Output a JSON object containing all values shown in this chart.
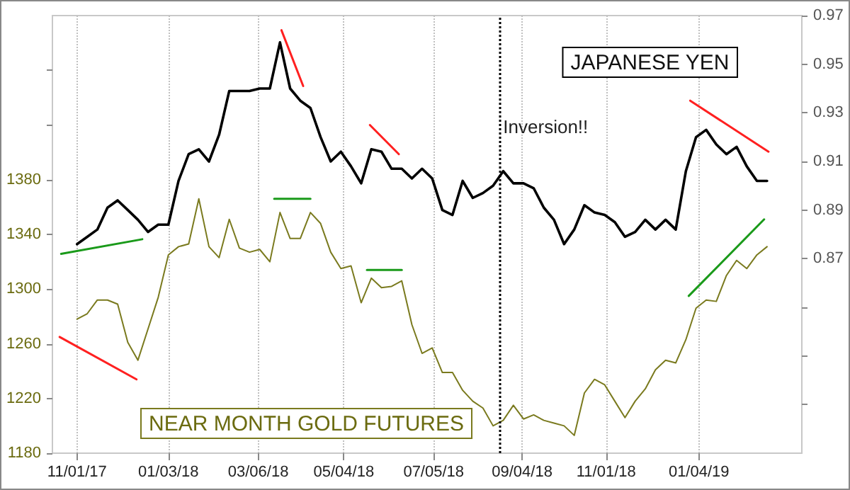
{
  "chart_data": {
    "type": "line",
    "marker": "none",
    "grid": "x",
    "x": [
      "2017-11-01",
      "2017-11-08",
      "2017-11-15",
      "2017-11-22",
      "2017-11-29",
      "2017-12-06",
      "2017-12-13",
      "2017-12-20",
      "2017-12-27",
      "2018-01-03",
      "2018-01-10",
      "2018-01-17",
      "2018-01-24",
      "2018-01-31",
      "2018-02-07",
      "2018-02-14",
      "2018-02-21",
      "2018-02-28",
      "2018-03-07",
      "2018-03-14",
      "2018-03-21",
      "2018-03-28",
      "2018-04-04",
      "2018-04-11",
      "2018-04-18",
      "2018-04-25",
      "2018-05-02",
      "2018-05-09",
      "2018-05-16",
      "2018-05-23",
      "2018-05-30",
      "2018-06-06",
      "2018-06-13",
      "2018-06-20",
      "2018-06-27",
      "2018-07-04",
      "2018-07-11",
      "2018-07-18",
      "2018-07-25",
      "2018-08-01",
      "2018-08-08",
      "2018-08-15",
      "2018-08-22",
      "2018-08-29",
      "2018-09-05",
      "2018-09-12",
      "2018-09-19",
      "2018-09-26",
      "2018-10-03",
      "2018-10-10",
      "2018-10-17",
      "2018-10-24",
      "2018-10-31",
      "2018-11-07",
      "2018-11-14",
      "2018-11-21",
      "2018-11-28",
      "2018-12-05",
      "2018-12-12",
      "2018-12-19",
      "2018-12-26",
      "2019-01-02",
      "2019-01-09",
      "2019-01-16",
      "2019-01-23",
      "2019-01-30",
      "2019-02-06",
      "2019-02-13",
      "2019-02-20"
    ],
    "series": [
      {
        "name": "JAPANESE YEN",
        "color": "#000000",
        "axis": "y2",
        "values": [
          0.876,
          0.879,
          0.882,
          0.891,
          0.894,
          0.89,
          0.886,
          0.881,
          0.884,
          0.884,
          0.902,
          0.913,
          0.915,
          0.91,
          0.921,
          0.939,
          0.939,
          0.939,
          0.94,
          0.94,
          0.959,
          0.94,
          0.935,
          0.932,
          0.92,
          0.91,
          0.914,
          0.908,
          0.901,
          0.915,
          0.914,
          0.907,
          0.907,
          0.903,
          0.907,
          0.903,
          0.89,
          0.888,
          0.902,
          0.895,
          0.897,
          0.9,
          0.906,
          0.901,
          0.901,
          0.899,
          0.891,
          0.886,
          0.876,
          0.882,
          0.892,
          0.889,
          0.888,
          0.885,
          0.879,
          0.881,
          0.886,
          0.882,
          0.886,
          0.882,
          0.906,
          0.92,
          0.923,
          0.917,
          0.913,
          0.916,
          0.908,
          0.902,
          0.902
        ]
      },
      {
        "name": "NEAR MONTH GOLD FUTURES",
        "color": "#7a7a1e",
        "values": [
          1278,
          1282,
          1292,
          1292,
          1289,
          1261,
          1248,
          1271,
          1294,
          1325,
          1331,
          1333,
          1366,
          1331,
          1323,
          1351,
          1330,
          1327,
          1329,
          1320,
          1356,
          1337,
          1337,
          1356,
          1348,
          1327,
          1315,
          1317,
          1290,
          1308,
          1301,
          1302,
          1306,
          1274,
          1253,
          1257,
          1239,
          1239,
          1226,
          1218,
          1213,
          1200,
          1204,
          1215,
          1205,
          1208,
          1204,
          1202,
          1200,
          1193,
          1224,
          1234,
          1230,
          1218,
          1206,
          1218,
          1227,
          1241,
          1248,
          1246,
          1263,
          1286,
          1292,
          1291,
          1310,
          1321,
          1315,
          1325,
          1331
        ]
      },
      {
        "color": "#1a9a1a",
        "axis": "y2",
        "x": [
          "2017-10-21",
          "2017-12-16"
        ],
        "values": [
          0.872,
          0.878
        ]
      },
      {
        "color": "#ff2020",
        "x": [
          "2017-10-20",
          "2017-12-12"
        ],
        "values": [
          1265,
          1234
        ]
      },
      {
        "color": "#ff2020",
        "axis": "y2",
        "x": [
          "2018-03-22",
          "2018-04-06"
        ],
        "values": [
          0.964,
          0.941
        ]
      },
      {
        "color": "#1a9a1a",
        "x": [
          "2018-03-17",
          "2018-04-11"
        ],
        "values": [
          1366,
          1366
        ]
      },
      {
        "color": "#ff2020",
        "axis": "y2",
        "x": [
          "2018-05-22",
          "2018-06-11"
        ],
        "values": [
          0.925,
          0.913
        ]
      },
      {
        "color": "#1a9a1a",
        "x": [
          "2018-05-20",
          "2018-06-13"
        ],
        "values": [
          1314,
          1314
        ]
      },
      {
        "color": "#ff2020",
        "axis": "y2",
        "x": [
          "2018-12-29",
          "2019-02-21"
        ],
        "values": [
          0.935,
          0.914
        ]
      },
      {
        "color": "#1a9a1a",
        "x": [
          "2018-12-28",
          "2019-02-18"
        ],
        "values": [
          1295,
          1351
        ]
      }
    ],
    "xlim": [
      "2017-10-15",
      "2019-03-16"
    ],
    "xticks": [
      {
        "value": "2017-11-01",
        "label": "11/01/17"
      },
      {
        "value": "2018-01-03",
        "label": "01/03/18"
      },
      {
        "value": "2018-03-06",
        "label": "03/06/18"
      },
      {
        "value": "2018-05-04",
        "label": "05/04/18"
      },
      {
        "value": "2018-07-05",
        "label": "07/05/18"
      },
      {
        "value": "2018-09-04",
        "label": "09/04/18"
      },
      {
        "value": "2018-11-01",
        "label": "11/01/18"
      },
      {
        "value": "2019-01-04",
        "label": "01/04/19"
      }
    ],
    "ylim": [
      1180,
      1500
    ],
    "yticks": [
      1180,
      1220,
      1260,
      1300,
      1340,
      1380,
      {
        "value": 1420,
        "label": null
      },
      {
        "value": 1460,
        "label": null
      }
    ],
    "y2lim": [
      0.79,
      0.97
    ],
    "y2ticks": [
      {
        "value": 0.81,
        "label": null
      },
      {
        "value": 0.83,
        "label": null
      },
      {
        "value": 0.85,
        "label": null
      },
      0.87,
      0.89,
      0.91,
      0.93,
      0.95,
      0.97
    ],
    "ref_lines": [
      {
        "axis": "x",
        "value": "2018-08-20",
        "label": "Inversion!!",
        "line_style": "dotted",
        "color": "#000000"
      }
    ]
  }
}
